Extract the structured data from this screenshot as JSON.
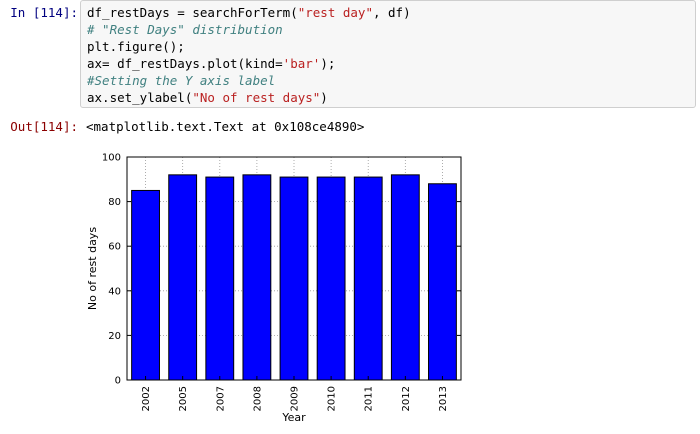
{
  "cell": {
    "in_prompt": "In [114]:",
    "out_prompt": "Out[114]:",
    "code": [
      {
        "parts": [
          {
            "t": "df_restDays = searchForTerm(",
            "c": "plain"
          },
          {
            "t": "\"rest day\"",
            "c": "str"
          },
          {
            "t": ", df)",
            "c": "plain"
          }
        ]
      },
      {
        "parts": [
          {
            "t": "# \"Rest Days\" distribution",
            "c": "cmt"
          }
        ]
      },
      {
        "parts": [
          {
            "t": "plt.figure();",
            "c": "plain"
          }
        ]
      },
      {
        "parts": [
          {
            "t": "ax= df_restDays.plot(kind=",
            "c": "plain"
          },
          {
            "t": "'bar'",
            "c": "str"
          },
          {
            "t": ");",
            "c": "plain"
          }
        ]
      },
      {
        "parts": [
          {
            "t": "#Setting the Y axis label",
            "c": "cmt"
          }
        ]
      },
      {
        "parts": [
          {
            "t": "ax.set_ylabel(",
            "c": "plain"
          },
          {
            "t": "\"No of rest days\"",
            "c": "str"
          },
          {
            "t": ")",
            "c": "plain"
          }
        ]
      }
    ],
    "output_text": "<matplotlib.text.Text at 0x108ce4890>"
  },
  "colors": {
    "bar": "#0000ff",
    "prompt_in": "#000080",
    "prompt_out": "#8b0000",
    "string": "#ba2121",
    "comment": "#408080"
  },
  "chart_data": {
    "type": "bar",
    "categories": [
      "2002",
      "2005",
      "2007",
      "2008",
      "2009",
      "2010",
      "2011",
      "2012",
      "2013"
    ],
    "values": [
      85,
      92,
      91,
      92,
      91,
      91,
      91,
      92,
      88
    ],
    "title": "",
    "xlabel": "Year",
    "ylabel": "No of rest days",
    "ylim": [
      0,
      100
    ],
    "yticks": [
      0,
      20,
      40,
      60,
      80,
      100
    ],
    "grid": true,
    "legend": "none"
  }
}
